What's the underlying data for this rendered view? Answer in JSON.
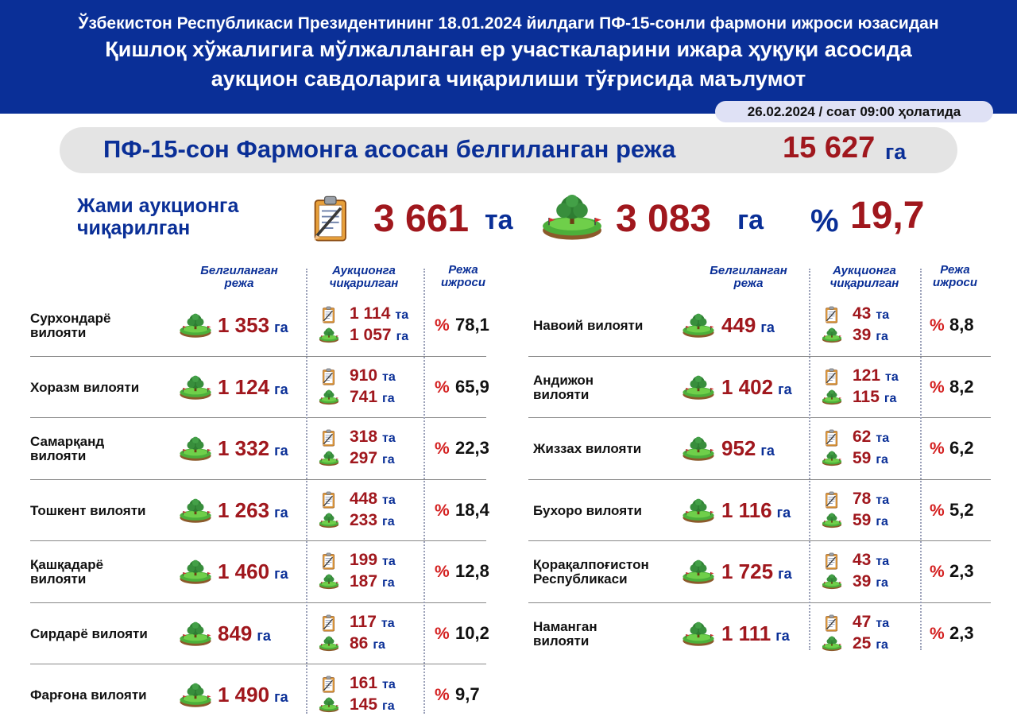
{
  "header": {
    "line1": "Ўзбекистон Республикаси Президентининг 18.01.2024 йилдаги ПФ-15-сонли фармони ижроси юзасидан",
    "line2": "Қишлоқ хўжалигига мўлжалланган ер участкаларини ижара ҳуқуқи асосида",
    "line3": "аукцион савдоларига чиқарилиши тўғрисида маълумот",
    "date": "26.02.2024 / соат 09:00 ҳолатида"
  },
  "plan": {
    "label": "ПФ-15-сон Фармонга асосан белгиланган режа",
    "value": "15 627",
    "unit": "га"
  },
  "totals": {
    "label_line1": "Жами аукционга",
    "label_line2": "чиқарилган",
    "count": "3 661",
    "count_unit": "та",
    "area": "3 083",
    "area_unit": "га",
    "pct_symbol": "%",
    "pct": "19,7"
  },
  "columns": {
    "plan_l1": "Белгиланган",
    "plan_l2": "режа",
    "auction_l1": "Аукционга",
    "auction_l2": "чиқарилган",
    "exec_l1": "Режа",
    "exec_l2": "ижроси"
  },
  "units": {
    "ha": "га",
    "pcs": "та",
    "pct": "%"
  },
  "icons": {
    "document": "clipboard-icon",
    "land": "land-plot-icon"
  },
  "colors": {
    "navy": "#0a2f97",
    "red": "#a0171d",
    "pct_red": "#d42020"
  },
  "left_regions": [
    {
      "name_l1": "Сурхондарё",
      "name_l2": "вилояти",
      "plan": "1 353",
      "count": "1 114",
      "area": "1 057",
      "pct": "78,1"
    },
    {
      "name_l1": "Хоразм вилояти",
      "name_l2": "",
      "plan": "1 124",
      "count": "910",
      "area": "741",
      "pct": "65,9"
    },
    {
      "name_l1": "Самарқанд",
      "name_l2": "вилояти",
      "plan": "1 332",
      "count": "318",
      "area": "297",
      "pct": "22,3"
    },
    {
      "name_l1": "Тошкент вилояти",
      "name_l2": "",
      "plan": "1 263",
      "count": "448",
      "area": "233",
      "pct": "18,4"
    },
    {
      "name_l1": "Қашқадарё",
      "name_l2": "вилояти",
      "plan": "1 460",
      "count": "199",
      "area": "187",
      "pct": "12,8"
    },
    {
      "name_l1": "Сирдарё вилояти",
      "name_l2": "",
      "plan": "849",
      "count": "117",
      "area": "86",
      "pct": "10,2"
    },
    {
      "name_l1": "Фарғона вилояти",
      "name_l2": "",
      "plan": "1 490",
      "count": "161",
      "area": "145",
      "pct": "9,7"
    }
  ],
  "right_regions": [
    {
      "name_l1": "Навоий вилояти",
      "name_l2": "",
      "plan": "449",
      "count": "43",
      "area": "39",
      "pct": "8,8"
    },
    {
      "name_l1": "Андижон",
      "name_l2": "вилояти",
      "plan": "1 402",
      "count": "121",
      "area": "115",
      "pct": "8,2"
    },
    {
      "name_l1": "Жиззах вилояти",
      "name_l2": "",
      "plan": "952",
      "count": "62",
      "area": "59",
      "pct": "6,2"
    },
    {
      "name_l1": "Бухоро вилояти",
      "name_l2": "",
      "plan": "1 116",
      "count": "78",
      "area": "59",
      "pct": "5,2"
    },
    {
      "name_l1": "Қорақалпоғистон",
      "name_l2": "Республикаси",
      "plan": "1 725",
      "count": "43",
      "area": "39",
      "pct": "2,3"
    },
    {
      "name_l1": "Наманган",
      "name_l2": "вилояти",
      "plan": "1 111",
      "count": "47",
      "area": "25",
      "pct": "2,3"
    }
  ]
}
